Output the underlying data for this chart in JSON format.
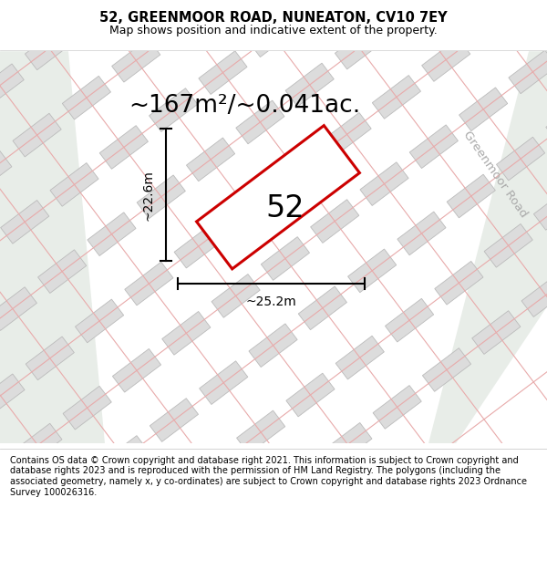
{
  "title": "52, GREENMOOR ROAD, NUNEATON, CV10 7EY",
  "subtitle": "Map shows position and indicative extent of the property.",
  "area_label": "~167m²/~0.041ac.",
  "number_label": "52",
  "width_label": "~25.2m",
  "height_label": "~22.6m",
  "road_label": "Greenmoor Road",
  "footer": "Contains OS data © Crown copyright and database right 2021. This information is subject to Crown copyright and database rights 2023 and is reproduced with the permission of HM Land Registry. The polygons (including the associated geometry, namely x, y co-ordinates) are subject to Crown copyright and database rights 2023 Ordnance Survey 100026316.",
  "map_bg": "#f0efee",
  "green_area": "#e8ede8",
  "plot_color": "#dcdcdc",
  "plot_border_color": "#bbbbbb",
  "red_border": "#cc0000",
  "pink_line": "#e8aaaa",
  "road_bg": "#e8ede8",
  "title_fontsize": 10.5,
  "subtitle_fontsize": 9,
  "area_fontsize": 19,
  "number_fontsize": 24,
  "label_fontsize": 10,
  "road_fontsize": 9.5,
  "footer_fontsize": 7.0
}
